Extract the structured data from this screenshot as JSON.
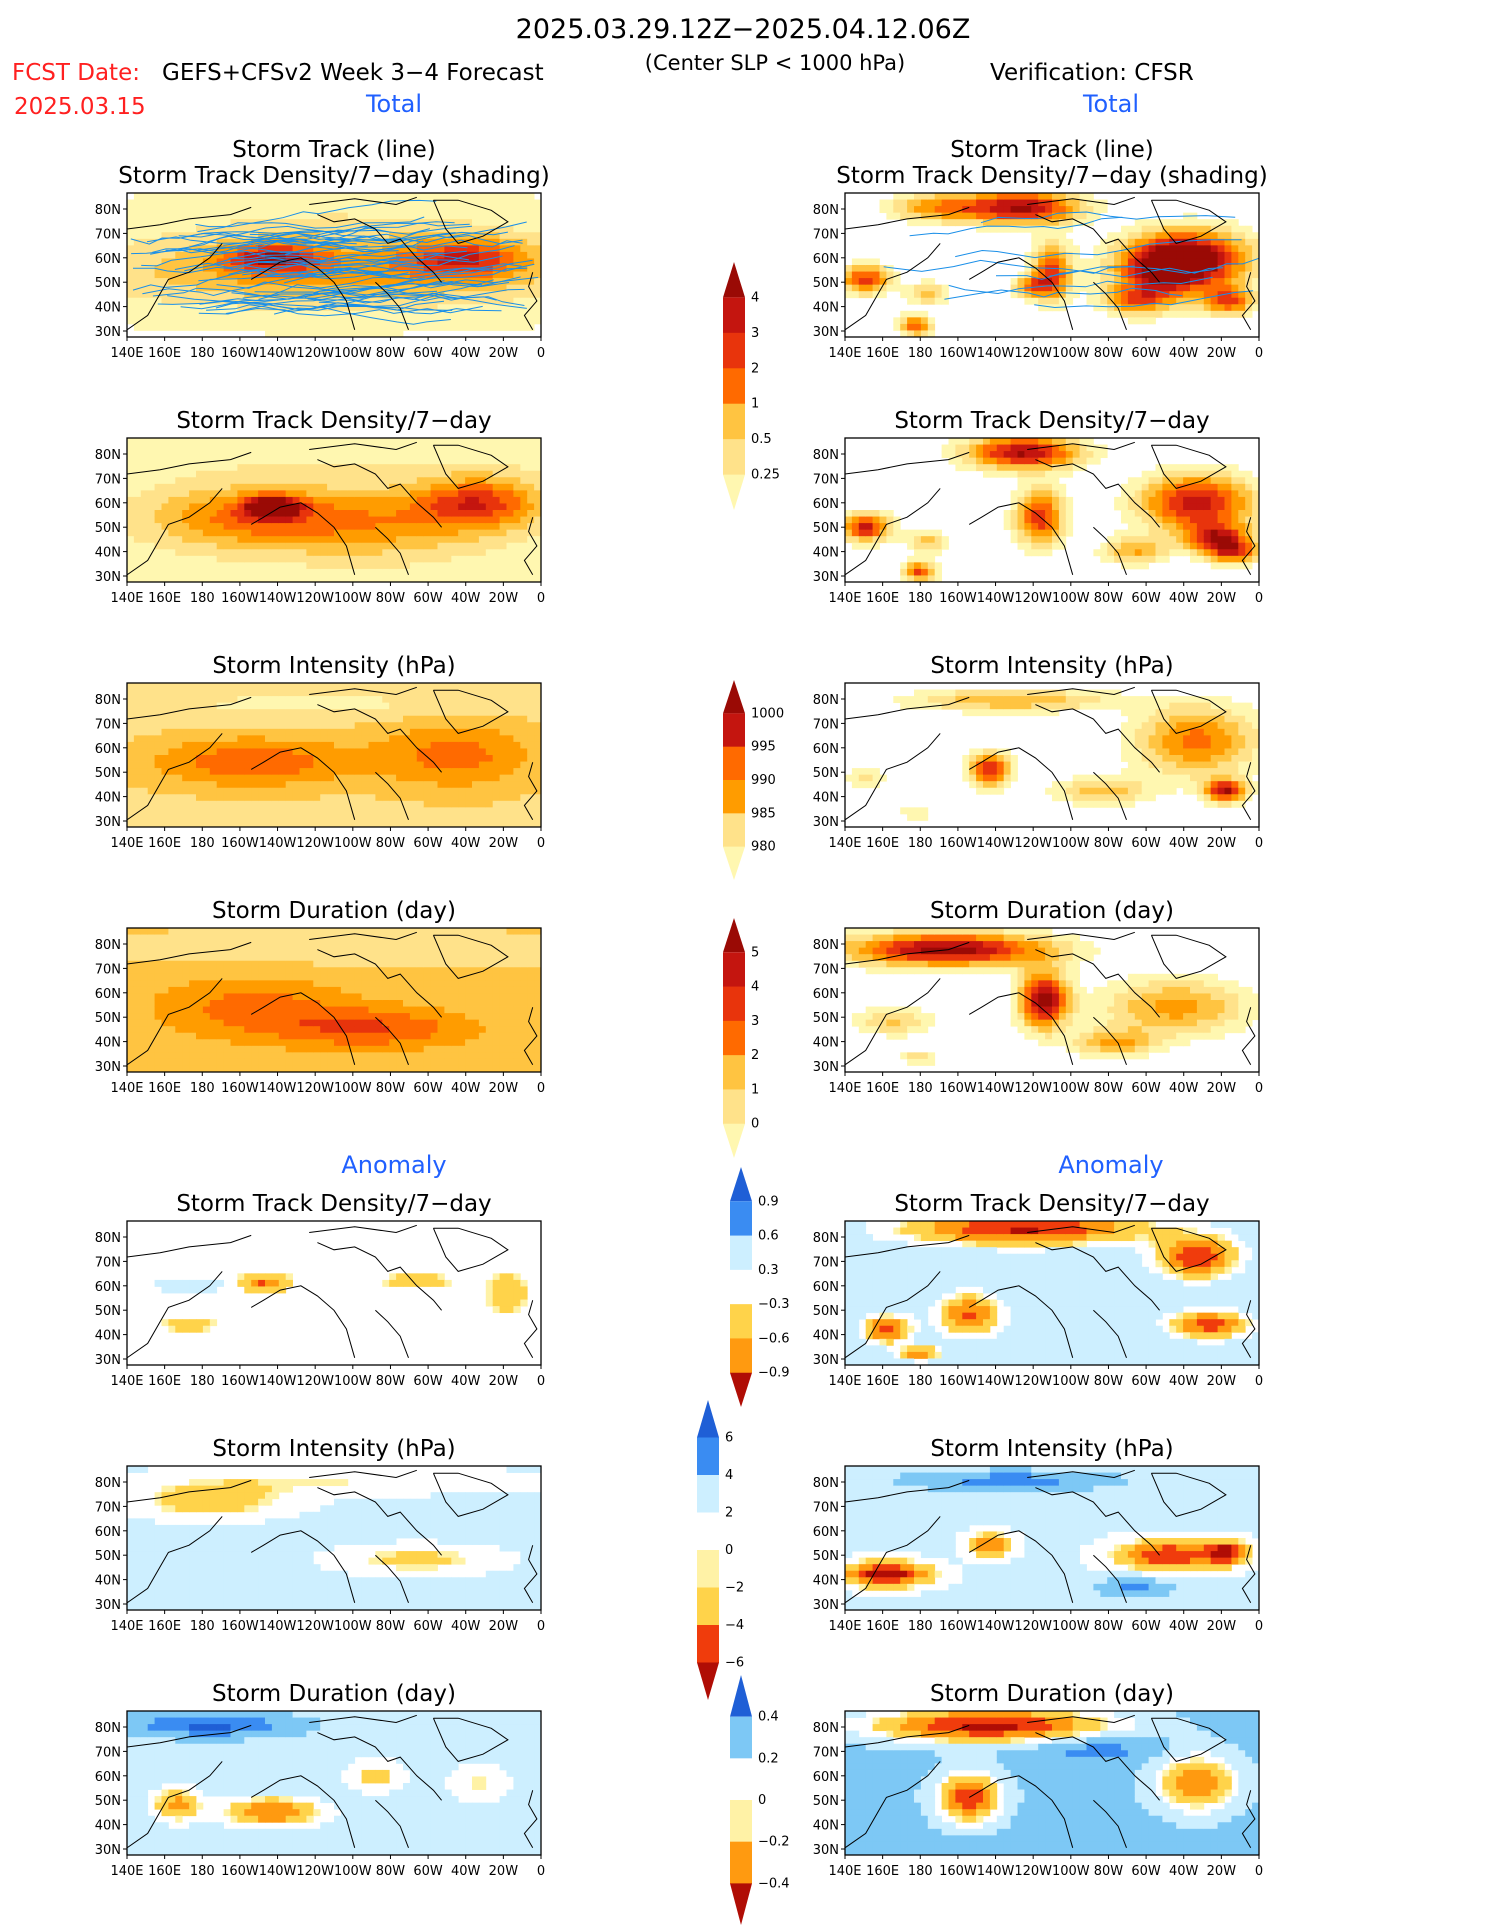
{
  "header": {
    "title": "2025.03.29.12Z−2025.04.12.06Z",
    "fcst_label": "FCST Date:",
    "fcst_date": "2025.03.15",
    "model": "GEFS+CFSv2 Week 3−4 Forecast",
    "center_note": "(Center SLP < 1000 hPa)",
    "verification": "Verification: CFSR"
  },
  "sections": {
    "total_label": "Total",
    "anomaly_label": "Anomaly"
  },
  "panel_titles": {
    "storm_track_line": "Storm Track (line)",
    "storm_track_shading": "Storm Track Density/7−day (shading)",
    "density": "Storm Track Density/7−day",
    "intensity": "Storm Intensity (hPa)",
    "duration": "Storm Duration (day)"
  },
  "axes": {
    "lon_labels": [
      "140E",
      "160E",
      "180",
      "160W",
      "140W",
      "120W",
      "100W",
      "80W",
      "60W",
      "40W",
      "20W",
      "0"
    ],
    "lat_labels": [
      "80N",
      "70N",
      "60N",
      "50N",
      "40N",
      "30N"
    ]
  },
  "colors": {
    "total_scale": [
      "#fff7b0",
      "#ffe28a",
      "#ffc441",
      "#ff9c00",
      "#ff6a00",
      "#e8340c",
      "#c4150f",
      "#9a0a05"
    ],
    "anomaly_scale": [
      "#1f5fd6",
      "#3a8cf2",
      "#7dc8f5",
      "#cdefff",
      "#ffffff",
      "#fff2a6",
      "#ffd34a",
      "#ff9a10",
      "#f03c0c",
      "#b00d05"
    ],
    "title_blue": "#2060ff",
    "fcst_red": "#ff2020",
    "track_line": "#1a8fe8"
  },
  "chart_data": [
    {
      "type": "colorbar",
      "name": "total_density",
      "levels": [
        "4",
        "3",
        "2",
        "1",
        "0.5",
        "0.25"
      ]
    },
    {
      "type": "colorbar",
      "name": "total_intensity",
      "levels": [
        "1000",
        "995",
        "990",
        "985",
        "980"
      ]
    },
    {
      "type": "colorbar",
      "name": "total_duration",
      "levels": [
        "5",
        "4",
        "3",
        "2",
        "1",
        "0"
      ]
    },
    {
      "type": "colorbar",
      "name": "anomaly_density",
      "levels": [
        "0.9",
        "0.6",
        "0.3",
        "−0.3",
        "−0.6",
        "−0.9"
      ]
    },
    {
      "type": "colorbar",
      "name": "anomaly_intensity",
      "levels": [
        "6",
        "4",
        "2",
        "0",
        "−2",
        "−4",
        "−6"
      ]
    },
    {
      "type": "colorbar",
      "name": "anomaly_duration",
      "levels": [
        "0.4",
        "0.2",
        "0",
        "−0.2",
        "−0.4"
      ]
    },
    {
      "type": "heatmap",
      "name": "map_panels",
      "xlabel": "",
      "ylabel": "",
      "x_range": [
        "140E",
        "0"
      ],
      "y_range": [
        "25N",
        "85N"
      ],
      "panels": [
        {
          "id": "p-fc-track",
          "column": "forecast",
          "title_keys": [
            "storm_track_line",
            "storm_track_shading"
          ]
        },
        {
          "id": "p-vf-track",
          "column": "verification",
          "title_keys": [
            "storm_track_line",
            "storm_track_shading"
          ]
        },
        {
          "id": "p-fc-density",
          "column": "forecast",
          "title_keys": [
            "density"
          ]
        },
        {
          "id": "p-vf-density",
          "column": "verification",
          "title_keys": [
            "density"
          ]
        },
        {
          "id": "p-fc-intensity",
          "column": "forecast",
          "title_keys": [
            "intensity"
          ]
        },
        {
          "id": "p-vf-intensity",
          "column": "verification",
          "title_keys": [
            "intensity"
          ]
        },
        {
          "id": "p-fc-duration",
          "column": "forecast",
          "title_keys": [
            "duration"
          ]
        },
        {
          "id": "p-vf-duration",
          "column": "verification",
          "title_keys": [
            "duration"
          ]
        },
        {
          "id": "p-fc-anom-density",
          "column": "forecast",
          "title_keys": [
            "density"
          ]
        },
        {
          "id": "p-vf-anom-density",
          "column": "verification",
          "title_keys": [
            "density"
          ]
        },
        {
          "id": "p-fc-anom-intensity",
          "column": "forecast",
          "title_keys": [
            "intensity"
          ]
        },
        {
          "id": "p-vf-anom-intensity",
          "column": "verification",
          "title_keys": [
            "intensity"
          ]
        },
        {
          "id": "p-fc-anom-duration",
          "column": "forecast",
          "title_keys": [
            "duration"
          ]
        },
        {
          "id": "p-vf-anom-duration",
          "column": "verification",
          "title_keys": [
            "duration"
          ]
        }
      ]
    }
  ]
}
